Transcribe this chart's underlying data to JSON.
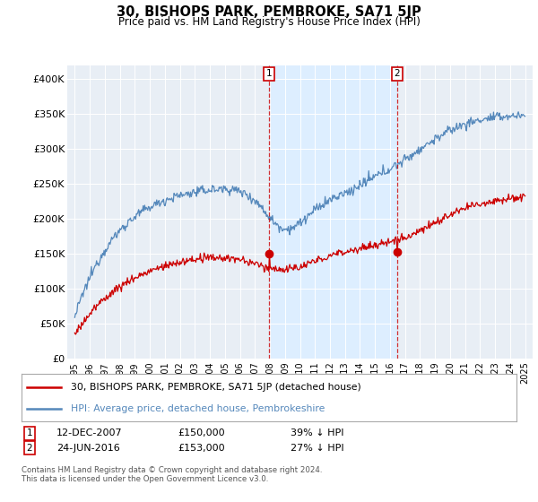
{
  "title": "30, BISHOPS PARK, PEMBROKE, SA71 5JP",
  "subtitle": "Price paid vs. HM Land Registry's House Price Index (HPI)",
  "legend_line1": "30, BISHOPS PARK, PEMBROKE, SA71 5JP (detached house)",
  "legend_line2": "HPI: Average price, detached house, Pembrokeshire",
  "annotation1_date": "12-DEC-2007",
  "annotation1_price": "£150,000",
  "annotation1_hpi": "39% ↓ HPI",
  "annotation2_date": "24-JUN-2016",
  "annotation2_price": "£153,000",
  "annotation2_hpi": "27% ↓ HPI",
  "footnote": "Contains HM Land Registry data © Crown copyright and database right 2024.\nThis data is licensed under the Open Government Licence v3.0.",
  "hpi_color": "#5588bb",
  "price_color": "#cc0000",
  "shade_color": "#ddeeff",
  "ylim": [
    0,
    420000
  ],
  "yticks": [
    0,
    50000,
    100000,
    150000,
    200000,
    250000,
    300000,
    350000,
    400000
  ],
  "ytick_labels": [
    "£0",
    "£50K",
    "£100K",
    "£150K",
    "£200K",
    "£250K",
    "£300K",
    "£350K",
    "£400K"
  ],
  "plot_bg_color": "#e8eef5",
  "marker1_x": 2007.95,
  "marker1_y": 150000,
  "marker2_x": 2016.48,
  "marker2_y": 153000,
  "xmin": 1994.5,
  "xmax": 2025.5
}
